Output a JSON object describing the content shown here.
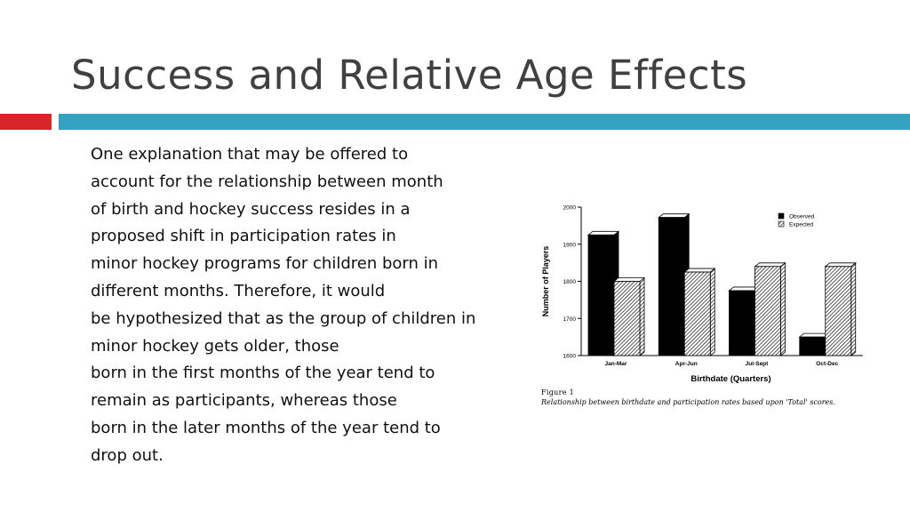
{
  "slide": {
    "title": "Success and Relative Age Effects",
    "body_lines": [
      "One explanation that may be offered to",
      "account for the relationship between month",
      "of birth and hockey success resides in a",
      "proposed shift in participation rates in",
      "minor hockey programs for children born in",
      "different months. Therefore, it would",
      "be hypothesized that as the group of children in",
      "minor hockey gets older, those",
      "born in the first months of the year tend to",
      "remain as participants, whereas those",
      "born in the later months of the year tend to",
      "drop out."
    ],
    "accent_colors": {
      "red": "#d9242a",
      "blue": "#35a2c2"
    }
  },
  "figure": {
    "label": "Figure 1",
    "caption": "Relationship between birthdate and participation rates based upon 'Total' scores."
  },
  "chart_data": {
    "type": "bar",
    "categories": [
      "Jan-Mar",
      "Apr-Jun",
      "Jul-Sept",
      "Oct-Dec"
    ],
    "series": [
      {
        "name": "Observed",
        "values": [
          1925,
          1972,
          1775,
          1650
        ],
        "fill": "solid-black"
      },
      {
        "name": "Expected",
        "values": [
          1800,
          1825,
          1840,
          1840
        ],
        "fill": "diagonal-hatch"
      }
    ],
    "xlabel": "Birthdate (Quarters)",
    "ylabel": "Number of Players",
    "ylim": [
      1600,
      2000
    ],
    "yticks": [
      "1600",
      "1700",
      "1800",
      "1900",
      "2000"
    ],
    "legend_position": "top-right",
    "grid": false
  }
}
